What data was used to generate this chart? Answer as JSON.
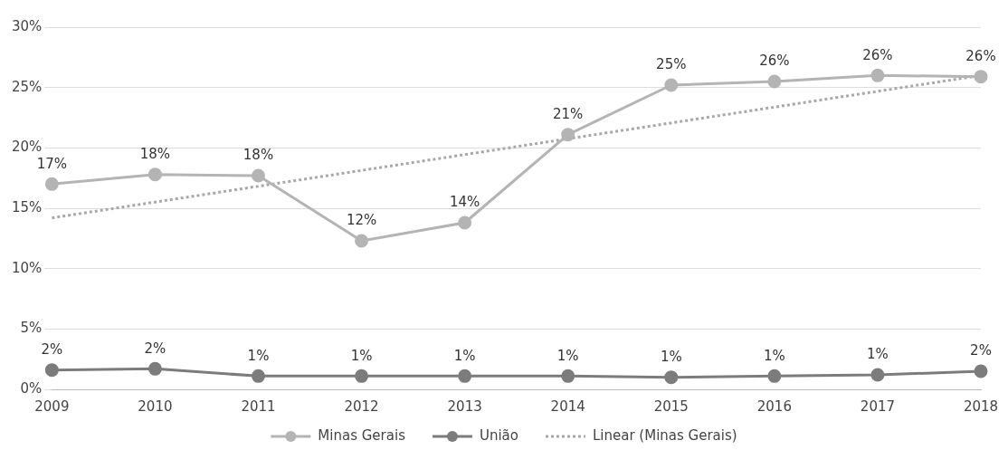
{
  "chart_data": {
    "type": "line",
    "categories": [
      "2009",
      "2010",
      "2011",
      "2012",
      "2013",
      "2014",
      "2015",
      "2016",
      "2017",
      "2018"
    ],
    "series": [
      {
        "name": "Minas Gerais",
        "color": "#b4b4b4",
        "values": [
          17,
          17.8,
          17.7,
          12.3,
          13.8,
          21.1,
          25.2,
          25.5,
          26,
          25.9
        ],
        "value_labels": [
          "17%",
          "18%",
          "18%",
          "12%",
          "14%",
          "21%",
          "25%",
          "26%",
          "26%",
          "26%"
        ]
      },
      {
        "name": "União",
        "color": "#7c7c7c",
        "values": [
          1.6,
          1.7,
          1.1,
          1.1,
          1.1,
          1.1,
          1.0,
          1.1,
          1.2,
          1.5
        ],
        "value_labels": [
          "2%",
          "2%",
          "1%",
          "1%",
          "1%",
          "1%",
          "1%",
          "1%",
          "1%",
          "2%"
        ]
      },
      {
        "name": "Linear (Minas Gerais)",
        "type": "line",
        "color": "#a8a8a8",
        "line_style": "dotted",
        "marker": "none",
        "values": [
          14.2,
          null,
          null,
          null,
          null,
          null,
          null,
          null,
          null,
          26.0
        ]
      }
    ],
    "ylim": [
      0,
      30
    ],
    "yticks": [
      {
        "value": 0,
        "label": "0%"
      },
      {
        "value": 5,
        "label": "5%"
      },
      {
        "value": 10,
        "label": "10%"
      },
      {
        "value": 15,
        "label": "15%"
      },
      {
        "value": 20,
        "label": "20%"
      },
      {
        "value": 25,
        "label": "25%"
      },
      {
        "value": 30,
        "label": "30%"
      }
    ],
    "grid": "y",
    "legend": "bottom",
    "marker": "circle",
    "line_style": "solid"
  }
}
